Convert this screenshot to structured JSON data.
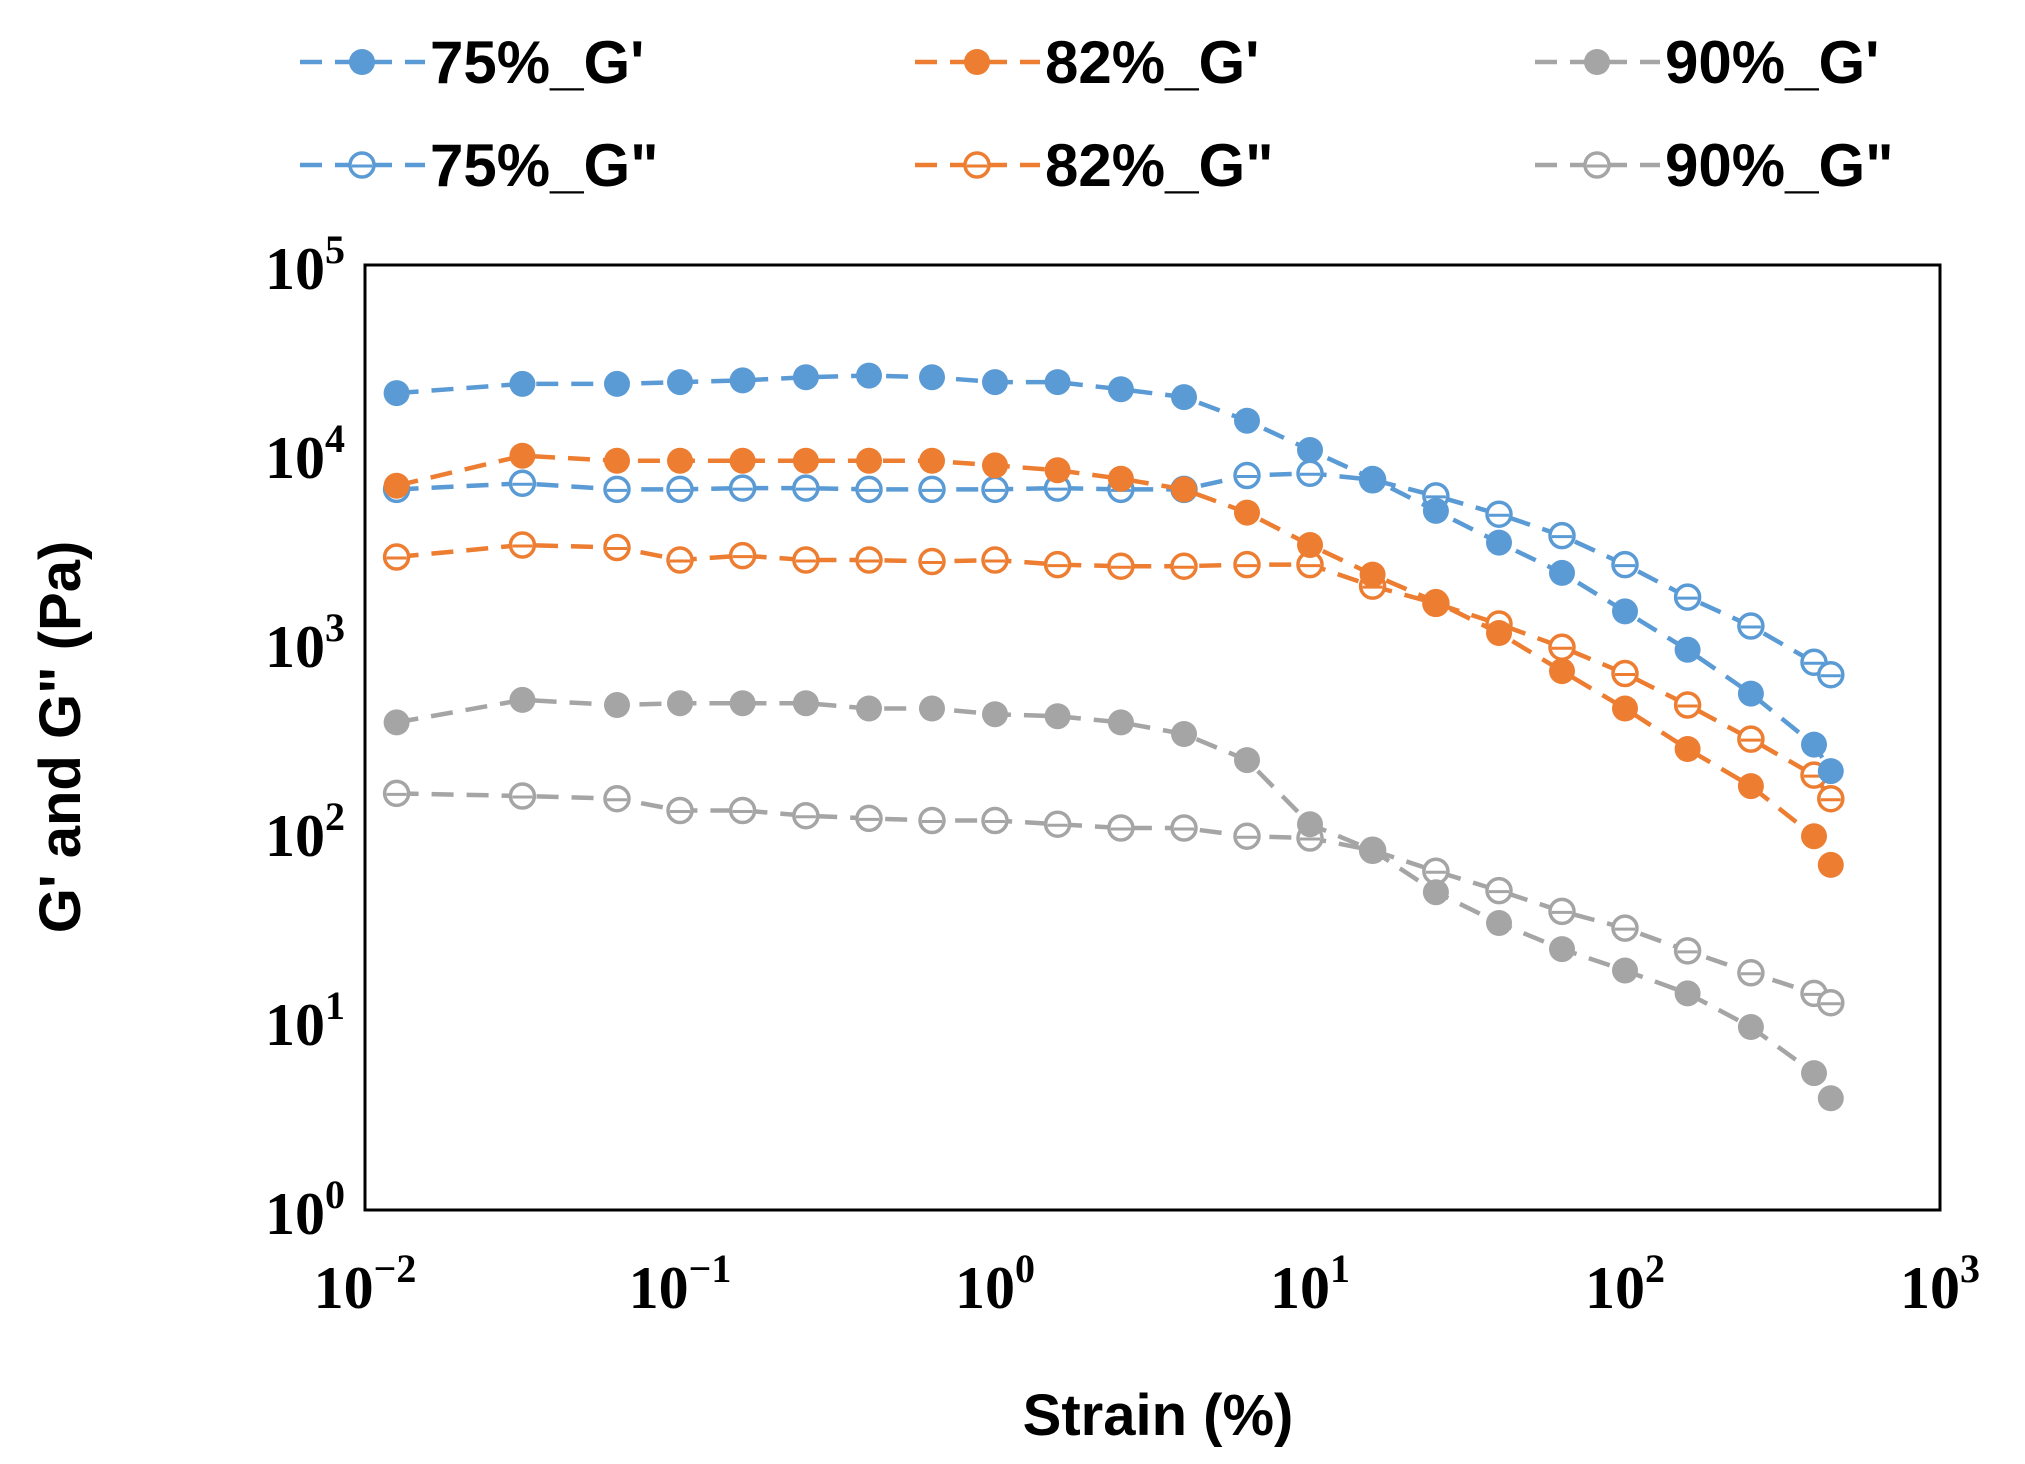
{
  "chart_data": {
    "type": "scatter",
    "title": "",
    "xlabel": "Strain (%)",
    "ylabel": "G' and G\" (Pa)",
    "x_scale": "log",
    "y_scale": "log",
    "xlim": [
      0.01,
      1000
    ],
    "ylim": [
      1,
      100000
    ],
    "x_ticks": [
      {
        "base": "10",
        "exp": "−2",
        "value": 0.01
      },
      {
        "base": "10",
        "exp": "−1",
        "value": 0.1
      },
      {
        "base": "10",
        "exp": "0",
        "value": 1
      },
      {
        "base": "10",
        "exp": "1",
        "value": 10
      },
      {
        "base": "10",
        "exp": "2",
        "value": 100
      },
      {
        "base": "10",
        "exp": "3",
        "value": 1000
      }
    ],
    "y_ticks": [
      {
        "base": "10",
        "exp": "0",
        "value": 1
      },
      {
        "base": "10",
        "exp": "1",
        "value": 10
      },
      {
        "base": "10",
        "exp": "2",
        "value": 100
      },
      {
        "base": "10",
        "exp": "3",
        "value": 1000
      },
      {
        "base": "10",
        "exp": "4",
        "value": 10000
      },
      {
        "base": "10",
        "exp": "5",
        "value": 100000
      }
    ],
    "grid": false,
    "legend_position": "top",
    "x": [
      0.0126,
      0.0316,
      0.0631,
      0.1,
      0.158,
      0.251,
      0.398,
      0.631,
      1.0,
      1.58,
      2.51,
      3.98,
      6.31,
      10.0,
      15.8,
      25.1,
      39.8,
      63.1,
      100,
      158,
      251,
      398,
      450
    ],
    "series": [
      {
        "name": "75%_G'",
        "color": "#5b9bd5",
        "filled": true,
        "values": [
          21000,
          23500,
          23500,
          24000,
          24500,
          25500,
          26000,
          25500,
          24000,
          24000,
          22000,
          20000,
          15000,
          10500,
          7400,
          5000,
          3400,
          2350,
          1470,
          920,
          540,
          290,
          210
        ]
      },
      {
        "name": "82%_G'",
        "color": "#ed7d31",
        "filled": true,
        "values": [
          6800,
          9800,
          9200,
          9200,
          9200,
          9200,
          9200,
          9200,
          8700,
          8200,
          7400,
          6500,
          4900,
          3300,
          2300,
          1650,
          1130,
          710,
          450,
          275,
          175,
          95,
          67
        ]
      },
      {
        "name": "90%_G'",
        "color": "#a5a5a5",
        "filled": true,
        "values": [
          380,
          500,
          470,
          480,
          480,
          480,
          450,
          450,
          420,
          410,
          380,
          330,
          240,
          110,
          80,
          48,
          33,
          24,
          18.5,
          14,
          9.3,
          5.3,
          3.9
        ]
      },
      {
        "name": "75%_G\"",
        "color": "#5b9bd5",
        "filled": false,
        "values": [
          6500,
          7000,
          6500,
          6500,
          6600,
          6600,
          6500,
          6500,
          6500,
          6600,
          6500,
          6500,
          7700,
          7900,
          7300,
          6000,
          4800,
          3700,
          2600,
          1750,
          1230,
          790,
          680
        ]
      },
      {
        "name": "82%_G\"",
        "color": "#ed7d31",
        "filled": false,
        "values": [
          2850,
          3300,
          3200,
          2750,
          2900,
          2750,
          2750,
          2700,
          2750,
          2600,
          2550,
          2550,
          2600,
          2600,
          2000,
          1620,
          1260,
          950,
          690,
          470,
          310,
          200,
          150
        ]
      },
      {
        "name": "90%_G\"",
        "color": "#a5a5a5",
        "filled": false,
        "values": [
          160,
          155,
          150,
          130,
          130,
          122,
          118,
          115,
          115,
          110,
          105,
          105,
          95,
          93,
          80,
          62,
          49,
          38,
          31,
          23.5,
          18,
          14,
          12.5
        ]
      }
    ]
  }
}
